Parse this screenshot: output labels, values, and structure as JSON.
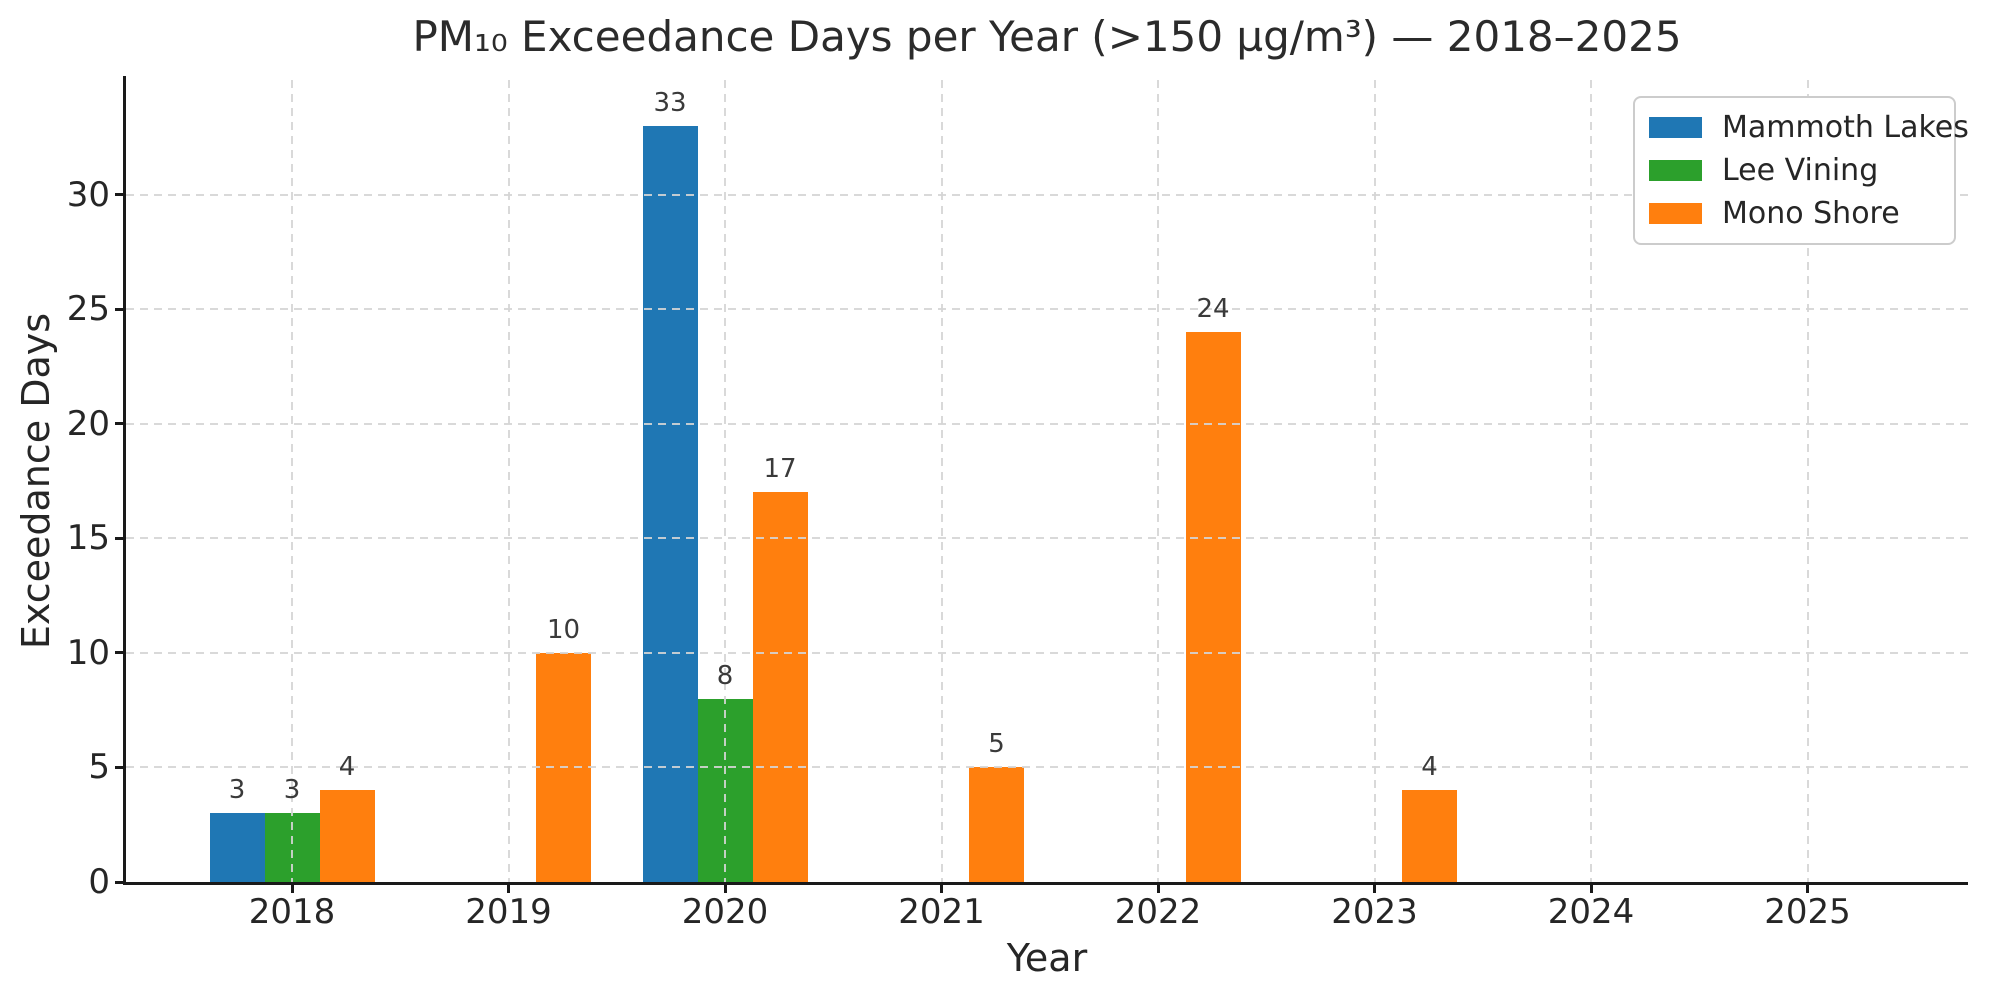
{
  "chart_data": {
    "type": "bar",
    "title": "PM₁₀ Exceedance Days per Year (>150 µg/m³) — 2018–2025",
    "xlabel": "Year",
    "ylabel": "Exceedance Days",
    "categories": [
      "2018",
      "2019",
      "2020",
      "2021",
      "2022",
      "2023",
      "2024",
      "2025"
    ],
    "series": [
      {
        "name": "Mammoth Lakes",
        "color": "#1f77b4",
        "values": [
          3,
          0,
          33,
          0,
          0,
          0,
          0,
          0
        ]
      },
      {
        "name": "Lee Vining",
        "color": "#2ca02c",
        "values": [
          3,
          0,
          8,
          0,
          0,
          0,
          0,
          0
        ]
      },
      {
        "name": "Mono Shore",
        "color": "#ff7f0e",
        "values": [
          4,
          10,
          17,
          5,
          24,
          4,
          0,
          0
        ]
      }
    ],
    "yticks": [
      0,
      5,
      10,
      15,
      20,
      25,
      30
    ],
    "ylim": [
      0,
      35
    ],
    "bar_value_labels": true,
    "grid": "dashed-both-axes-above-bars",
    "legend_position": "upper-right",
    "colors": {
      "background": "#ffffff",
      "grid": "#d5d5d5",
      "spine": "#1a1a1a",
      "text": "#262626",
      "value_label": "#3a3a3a"
    }
  }
}
